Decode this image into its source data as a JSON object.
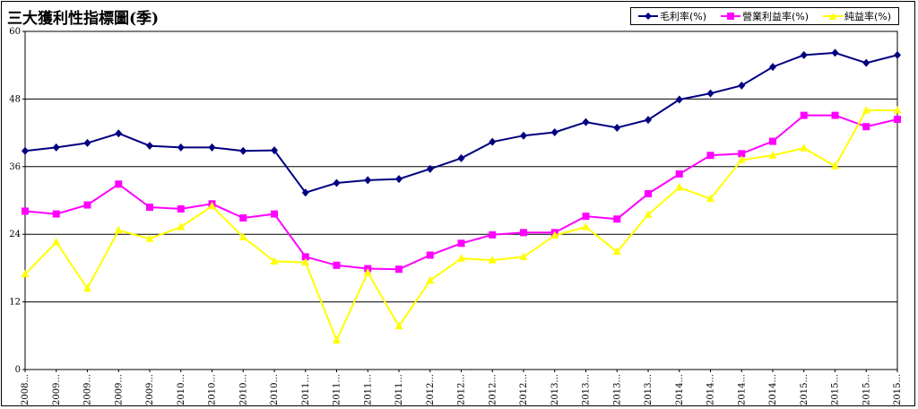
{
  "chart_data": {
    "type": "line",
    "title": "三大獲利性指標圖(季)",
    "ylim": [
      0,
      60
    ],
    "yticks": [
      0,
      12,
      24,
      36,
      48,
      60
    ],
    "grid": true,
    "legend_position": "top-right",
    "categories": [
      "2008...",
      "2009...",
      "2009...",
      "2009...",
      "2009...",
      "2010...",
      "2010...",
      "2010...",
      "2010...",
      "2011...",
      "2011...",
      "2011...",
      "2011...",
      "2012...",
      "2012...",
      "2012...",
      "2012...",
      "2013...",
      "2013...",
      "2013...",
      "2013...",
      "2014...",
      "2014...",
      "2014...",
      "2014...",
      "2015...",
      "2015...",
      "2015...",
      "2015..."
    ],
    "series": [
      {
        "name": "毛利率(%)",
        "color": "#000080",
        "marker": "diamond",
        "values": [
          38.8,
          39.4,
          40.2,
          41.9,
          39.7,
          39.4,
          39.4,
          38.8,
          38.9,
          31.4,
          33.1,
          33.6,
          33.8,
          35.6,
          37.5,
          40.4,
          41.5,
          42.1,
          43.9,
          42.9,
          44.3,
          47.9,
          49.0,
          50.4,
          53.7,
          55.8,
          56.2,
          54.4,
          55.8
        ]
      },
      {
        "name": "營業利益率(%)",
        "color": "#FF00FF",
        "marker": "square",
        "values": [
          28.1,
          27.6,
          29.2,
          32.9,
          28.8,
          28.5,
          29.4,
          26.9,
          27.6,
          20.0,
          18.5,
          17.9,
          17.8,
          20.3,
          22.4,
          23.9,
          24.3,
          24.3,
          27.2,
          26.7,
          31.2,
          34.7,
          38.0,
          38.3,
          40.5,
          45.1,
          45.1,
          43.1,
          44.4
        ]
      },
      {
        "name": "純益率(%)",
        "color": "#FFFF00",
        "marker": "triangle",
        "values": [
          16.9,
          22.6,
          14.4,
          24.7,
          23.2,
          25.3,
          29.0,
          23.5,
          19.2,
          19.0,
          5.2,
          17.2,
          7.7,
          15.8,
          19.7,
          19.4,
          20.0,
          23.8,
          25.3,
          20.9,
          27.5,
          32.3,
          30.3,
          37.2,
          38.0,
          39.3,
          36.1,
          46.0,
          46.0
        ]
      }
    ]
  }
}
